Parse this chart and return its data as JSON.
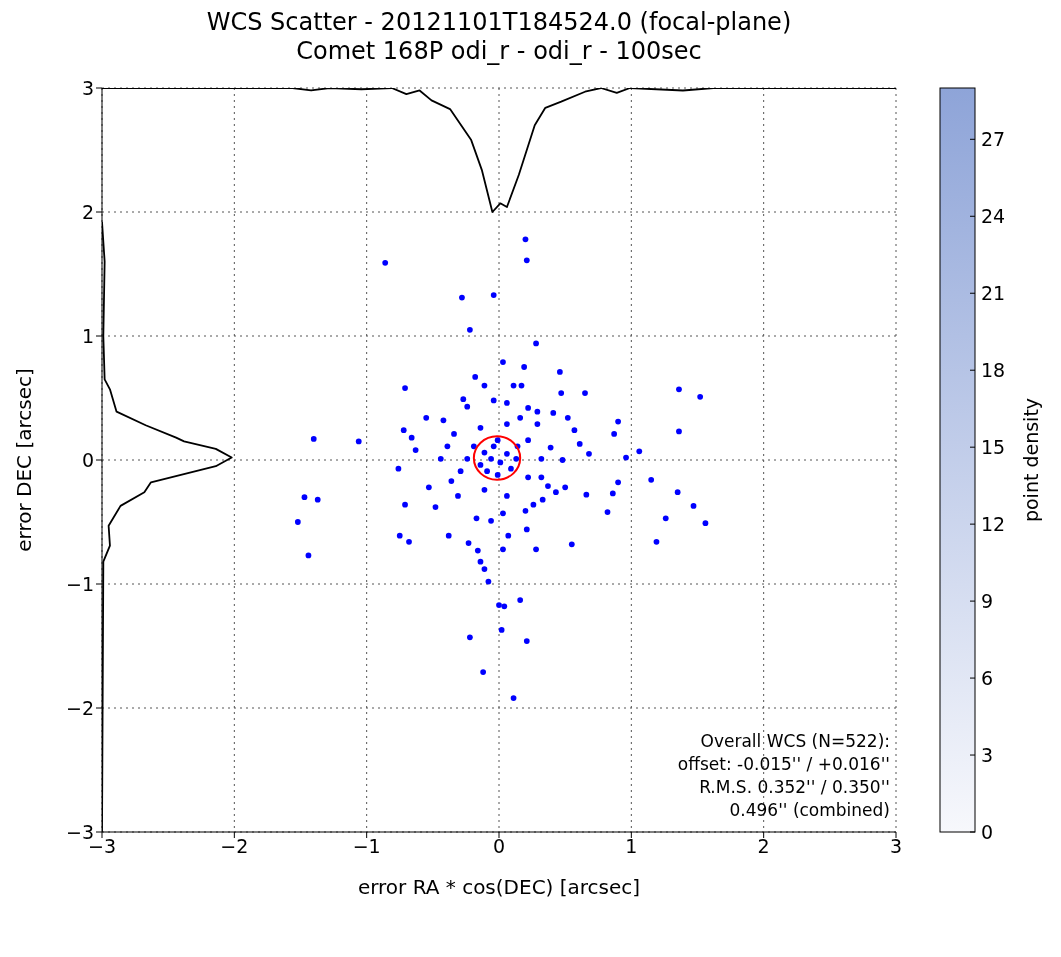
{
  "chart_data": {
    "type": "scatter",
    "title": "WCS Scatter - 20121101T184524.0 (focal-plane)",
    "subtitle": "Comet 168P odi_r - odi_r - 100sec",
    "xlabel": "error RA * cos(DEC) [arcsec]",
    "ylabel": "error DEC [arcsec]",
    "clabel": "point density",
    "clim": [
      0,
      29
    ],
    "cticks": [
      0,
      3,
      6,
      9,
      12,
      15,
      18,
      21,
      24,
      27
    ],
    "xlim": [
      -3,
      3
    ],
    "ylim": [
      -3,
      3
    ],
    "xticks": [
      -3,
      -2,
      -1,
      0,
      1,
      2,
      3
    ],
    "yticks": [
      -3,
      -2,
      -1,
      0,
      1,
      2,
      3
    ],
    "grid": true,
    "annotations": [
      "Overall WCS (N=522):",
      "offset: -0.015'' / +0.016''",
      "R.M.S. 0.352'' / 0.350''",
      "0.496'' (combined)"
    ],
    "series": [
      {
        "type": "scatter",
        "color": "#0000ff",
        "marker": "circle",
        "x": [
          0.2,
          0.21,
          -0.86,
          -0.28,
          -0.04,
          -0.22,
          0.28,
          0.03,
          0.19,
          0.46,
          -0.18,
          -0.71,
          1.36,
          1.52,
          0.47,
          0.65,
          1.36,
          0.9,
          0.87,
          -1.4,
          -1.06,
          1.06,
          0.96,
          0.68,
          1.15,
          0.9,
          0.86,
          0.66,
          1.35,
          1.47,
          1.56,
          1.26,
          0.82,
          1.19,
          0.55,
          -1.47,
          -1.37,
          -1.52,
          -1.44,
          -0.71,
          -0.75,
          -0.68,
          -0.38,
          -0.23,
          -0.16,
          -0.14,
          -0.11,
          -0.08,
          0.21,
          0.28,
          0.03,
          0.07,
          0.16,
          0.0,
          0.04,
          0.02,
          -0.22,
          0.21,
          -0.12,
          0.11,
          -0.48,
          -0.53,
          -0.76,
          -0.63,
          -0.72,
          -0.66,
          -0.55,
          0.41,
          0.52,
          0.57,
          0.61,
          0.48,
          0.5,
          0.43,
          0.11,
          0.17,
          -0.11,
          -0.04,
          -0.27,
          -0.24,
          0.06,
          0.22,
          0.29,
          -0.42,
          -0.39,
          -0.31,
          -0.17,
          -0.06,
          0.03,
          0.2,
          0.26,
          0.33,
          0.37,
          0.39,
          0.29,
          -0.11,
          -0.06,
          0.01,
          0.06,
          -0.04,
          0.09,
          -0.09,
          -0.14,
          -0.01,
          0.14,
          -0.01,
          0.13,
          -0.19,
          -0.24,
          -0.29,
          0.22,
          0.22,
          -0.11,
          0.06,
          -0.34,
          -0.14,
          0.06,
          0.16,
          0.32,
          -0.36,
          0.32,
          -0.44
        ],
        "values": [
          1.78,
          1.61,
          1.59,
          1.31,
          1.33,
          1.05,
          0.94,
          0.79,
          0.75,
          0.71,
          0.67,
          0.58,
          0.57,
          0.51,
          0.54,
          0.54,
          0.23,
          0.31,
          0.21,
          0.17,
          0.15,
          0.07,
          0.02,
          0.05,
          -0.16,
          -0.18,
          -0.27,
          -0.28,
          -0.26,
          -0.37,
          -0.51,
          -0.47,
          -0.42,
          -0.66,
          -0.68,
          -0.3,
          -0.32,
          -0.5,
          -0.77,
          -0.36,
          -0.61,
          -0.66,
          -0.61,
          -0.67,
          -0.73,
          -0.82,
          -0.88,
          -0.98,
          -0.56,
          -0.72,
          -0.72,
          -0.61,
          -1.13,
          -1.17,
          -1.18,
          -1.37,
          -1.43,
          -1.46,
          -1.71,
          -1.92,
          -0.38,
          -0.22,
          -0.07,
          0.08,
          0.24,
          0.18,
          0.34,
          0.38,
          0.34,
          0.24,
          0.13,
          0.0,
          -0.22,
          -0.26,
          0.6,
          0.6,
          0.6,
          0.48,
          0.49,
          0.43,
          0.46,
          0.42,
          0.39,
          0.32,
          0.11,
          -0.29,
          -0.47,
          -0.49,
          -0.43,
          -0.41,
          -0.36,
          -0.32,
          -0.21,
          0.1,
          0.29,
          0.06,
          0.01,
          -0.02,
          0.05,
          0.11,
          -0.07,
          -0.09,
          -0.04,
          0.16,
          0.11,
          -0.12,
          0.01,
          0.11,
          0.01,
          -0.09,
          0.16,
          -0.14,
          -0.24,
          -0.29,
          0.21,
          0.26,
          0.29,
          0.34,
          0.01,
          -0.17,
          -0.14,
          0.01
        ]
      },
      {
        "type": "line",
        "color": "#000000",
        "line_style": "solid",
        "marker": "none",
        "x": [
          -3.0,
          -1.56,
          -1.42,
          -1.28,
          -1.04,
          -0.81,
          -0.7,
          -0.6,
          -0.51,
          -0.37,
          -0.21,
          -0.13,
          -0.05,
          0.01,
          0.06,
          0.15,
          0.27,
          0.35,
          0.47,
          0.65,
          0.77,
          0.89,
          0.99,
          1.39,
          1.62,
          3.0
        ],
        "values": [
          3.0,
          3.0,
          2.98,
          3.0,
          2.99,
          3.0,
          2.95,
          2.98,
          2.9,
          2.83,
          2.58,
          2.34,
          2.0,
          2.07,
          2.04,
          2.3,
          2.7,
          2.84,
          2.89,
          2.97,
          3.0,
          2.96,
          3.0,
          2.98,
          3.0,
          3.0
        ]
      },
      {
        "type": "line",
        "color": "#000000",
        "line_style": "solid",
        "marker": "none",
        "x": [
          -3.0,
          -2.98,
          -2.99,
          -2.98,
          -2.94,
          -2.89,
          -2.67,
          -2.44,
          -2.38,
          -2.14,
          -2.02,
          -2.14,
          -2.63,
          -2.68,
          -2.86,
          -2.95,
          -2.94,
          -2.99,
          -3.0
        ],
        "values": [
          1.92,
          1.6,
          1.0,
          0.65,
          0.57,
          0.39,
          0.28,
          0.18,
          0.15,
          0.09,
          0.02,
          -0.05,
          -0.18,
          -0.26,
          -0.37,
          -0.53,
          -0.69,
          -0.82,
          -3.0
        ]
      }
    ]
  }
}
